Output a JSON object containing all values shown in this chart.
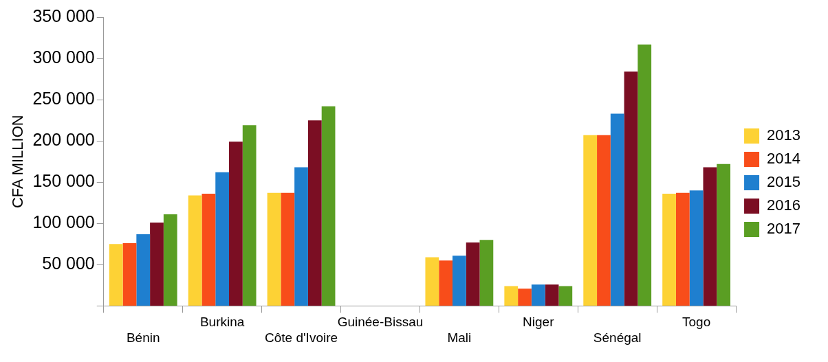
{
  "chart_data": {
    "type": "bar",
    "ylabel": "CFA MILLION",
    "categories": [
      "Bénin",
      "Burkina",
      "Côte d'Ivoire",
      "Guinée-Bissau",
      "Mali",
      "Niger",
      "Sénégal",
      "Togo"
    ],
    "series": [
      {
        "name": "2013",
        "color": "#fdd235",
        "values": [
          75000,
          134000,
          137000,
          0,
          59000,
          24000,
          207000,
          136000
        ]
      },
      {
        "name": "2014",
        "color": "#f84d1a",
        "values": [
          76000,
          136000,
          137000,
          0,
          55000,
          21000,
          207000,
          137000
        ]
      },
      {
        "name": "2015",
        "color": "#1f7fcf",
        "values": [
          87000,
          162000,
          168000,
          0,
          61000,
          26000,
          233000,
          140000
        ]
      },
      {
        "name": "2016",
        "color": "#7b0e23",
        "values": [
          101000,
          199000,
          225000,
          0,
          77000,
          26000,
          284000,
          168000
        ]
      },
      {
        "name": "2017",
        "color": "#5a9e23",
        "values": [
          111000,
          219000,
          242000,
          0,
          80000,
          24000,
          317000,
          172000
        ]
      }
    ],
    "ylim": [
      0,
      350000
    ],
    "yticks": [
      {
        "value": 0,
        "label": null
      },
      {
        "value": 50000,
        "label": "50 000"
      },
      {
        "value": 100000,
        "label": "100 000"
      },
      {
        "value": 150000,
        "label": "150 000"
      },
      {
        "value": 200000,
        "label": "200 000"
      },
      {
        "value": 250000,
        "label": "250 000"
      },
      {
        "value": 300000,
        "label": "300 000"
      },
      {
        "value": 350000,
        "label": "350 000"
      }
    ],
    "grid": false,
    "legend": "right"
  }
}
